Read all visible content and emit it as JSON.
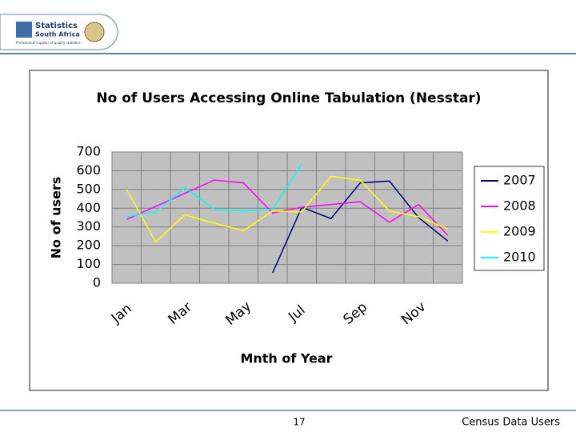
{
  "header": {
    "logo_title": "Statistics",
    "logo_subtitle": "South Africa",
    "tagline": "Professional supplier of quality statistics"
  },
  "chart_data": {
    "type": "line",
    "title": "No of Users Accessing Online Tabulation (Nesstar)",
    "x_label": "Mnth of Year",
    "y_label": "No of users",
    "categories": [
      "Jan",
      null,
      "Mar",
      null,
      "May",
      null,
      "Jul",
      null,
      "Sep",
      null,
      "Nov",
      null
    ],
    "series": [
      {
        "name": "2007",
        "color": "#000080",
        "values": [
          null,
          null,
          null,
          null,
          null,
          55,
          405,
          345,
          535,
          545,
          350,
          225
        ]
      },
      {
        "name": "2008",
        "color": "#ff00ff",
        "values": [
          340,
          410,
          480,
          550,
          535,
          375,
          405,
          420,
          435,
          325,
          420,
          255
        ]
      },
      {
        "name": "2009",
        "color": "#ffff00",
        "values": [
          500,
          220,
          365,
          320,
          280,
          385,
          380,
          570,
          550,
          385,
          355,
          290
        ]
      },
      {
        "name": "2010",
        "color": "#00ffff",
        "values": [
          355,
          380,
          510,
          395,
          385,
          395,
          635,
          null,
          null,
          null,
          null,
          null
        ]
      }
    ],
    "ylim": [
      0,
      700
    ],
    "yticks": [
      0,
      100,
      200,
      300,
      400,
      500,
      600,
      700
    ],
    "grid": true,
    "legend": "right",
    "plot_background": "#c0c0c0"
  },
  "footer": {
    "page_number": "17",
    "text": "Census Data Users"
  }
}
